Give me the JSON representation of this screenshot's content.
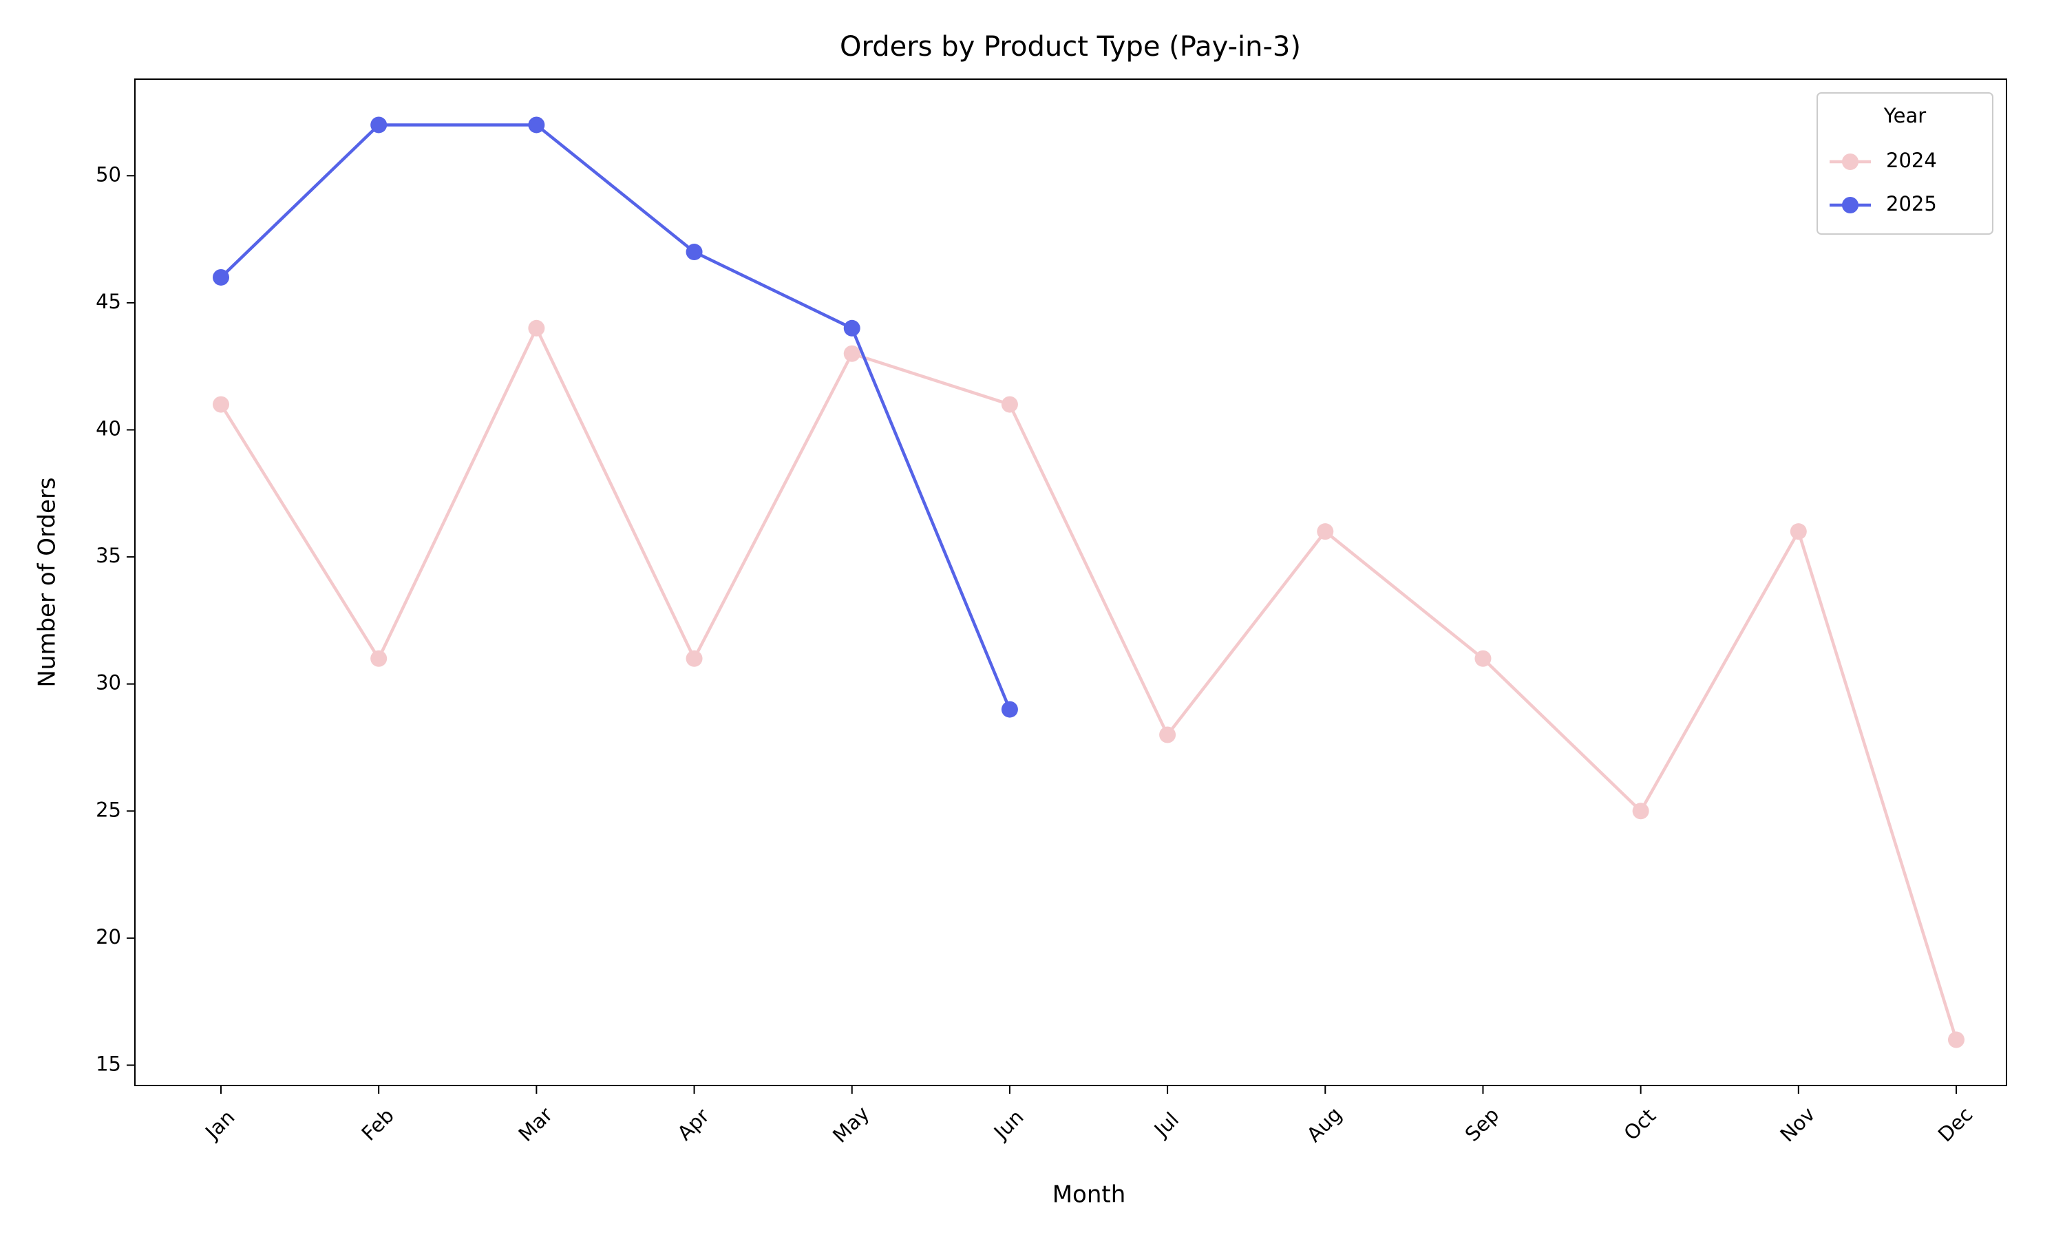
{
  "chart_data": {
    "type": "line",
    "title": "Orders by Product Type (Pay-in-3)",
    "x_label": "Month",
    "y_label": "Number of Orders",
    "categories": [
      "Jan",
      "Feb",
      "Mar",
      "Apr",
      "May",
      "Jun",
      "Jul",
      "Aug",
      "Sep",
      "Oct",
      "Nov",
      "Dec"
    ],
    "series": [
      {
        "name": "2024",
        "color": "#f4c9cc",
        "values": [
          41,
          31,
          44,
          31,
          43,
          41,
          28,
          36,
          31,
          25,
          36,
          16
        ]
      },
      {
        "name": "2025",
        "color": "#5563e8",
        "values": [
          46,
          52,
          52,
          47,
          44,
          29,
          null,
          null,
          null,
          null,
          null,
          null
        ]
      }
    ],
    "ylim": [
      14.2,
      53.8
    ],
    "yticks": [
      15,
      20,
      25,
      30,
      35,
      40,
      45,
      50
    ],
    "grid": false,
    "legend_title": "Year",
    "legend_position": "upper right"
  }
}
